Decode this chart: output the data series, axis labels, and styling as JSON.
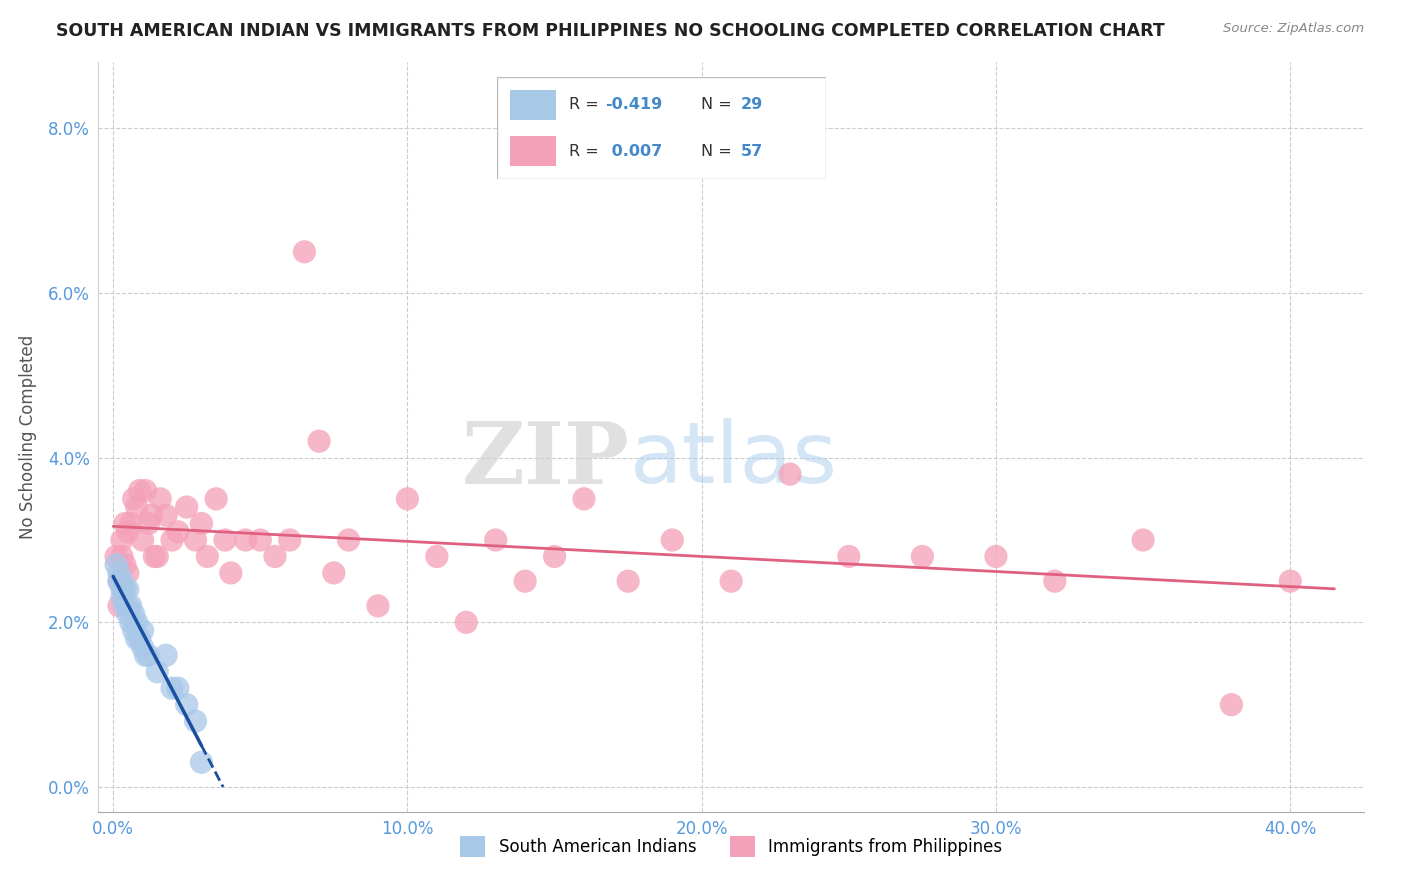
{
  "title": "SOUTH AMERICAN INDIAN VS IMMIGRANTS FROM PHILIPPINES NO SCHOOLING COMPLETED CORRELATION CHART",
  "source": "Source: ZipAtlas.com",
  "xlabel_ticks": [
    "0.0%",
    "10.0%",
    "20.0%",
    "30.0%",
    "40.0%"
  ],
  "xlabel_tick_vals": [
    0.0,
    0.1,
    0.2,
    0.3,
    0.4
  ],
  "ylabel": "No Schooling Completed",
  "ylabel_ticks": [
    "0.0%",
    "2.0%",
    "4.0%",
    "6.0%",
    "8.0%"
  ],
  "ylabel_tick_vals": [
    0.0,
    0.02,
    0.04,
    0.06,
    0.08
  ],
  "xlim": [
    -0.005,
    0.425
  ],
  "ylim": [
    -0.003,
    0.088
  ],
  "blue_R": -0.419,
  "blue_N": 29,
  "pink_R": 0.007,
  "pink_N": 57,
  "blue_color": "#a8c8e8",
  "pink_color": "#f4a0b8",
  "blue_line_color": "#1a4fa0",
  "pink_line_color": "#e06080",
  "legend_label_blue": "South American Indians",
  "legend_label_pink": "Immigrants from Philippines",
  "watermark_zip": "ZIP",
  "watermark_atlas": "atlas",
  "blue_scatter_x": [
    0.001,
    0.002,
    0.002,
    0.003,
    0.003,
    0.003,
    0.004,
    0.004,
    0.005,
    0.005,
    0.005,
    0.006,
    0.006,
    0.007,
    0.007,
    0.008,
    0.008,
    0.009,
    0.01,
    0.01,
    0.011,
    0.012,
    0.015,
    0.018,
    0.02,
    0.022,
    0.025,
    0.028,
    0.03
  ],
  "blue_scatter_y": [
    0.027,
    0.026,
    0.025,
    0.025,
    0.024,
    0.023,
    0.024,
    0.022,
    0.024,
    0.022,
    0.021,
    0.022,
    0.02,
    0.021,
    0.019,
    0.02,
    0.018,
    0.018,
    0.019,
    0.017,
    0.016,
    0.016,
    0.014,
    0.016,
    0.012,
    0.012,
    0.01,
    0.008,
    0.003
  ],
  "pink_scatter_x": [
    0.001,
    0.002,
    0.002,
    0.003,
    0.003,
    0.004,
    0.004,
    0.005,
    0.005,
    0.006,
    0.007,
    0.008,
    0.009,
    0.01,
    0.011,
    0.012,
    0.013,
    0.014,
    0.015,
    0.016,
    0.018,
    0.02,
    0.022,
    0.025,
    0.028,
    0.03,
    0.032,
    0.035,
    0.038,
    0.04,
    0.045,
    0.05,
    0.055,
    0.06,
    0.065,
    0.07,
    0.075,
    0.08,
    0.09,
    0.1,
    0.11,
    0.12,
    0.13,
    0.14,
    0.15,
    0.16,
    0.175,
    0.19,
    0.21,
    0.23,
    0.25,
    0.275,
    0.3,
    0.32,
    0.35,
    0.38,
    0.4
  ],
  "pink_scatter_y": [
    0.028,
    0.025,
    0.022,
    0.03,
    0.028,
    0.032,
    0.027,
    0.031,
    0.026,
    0.032,
    0.035,
    0.034,
    0.036,
    0.03,
    0.036,
    0.032,
    0.033,
    0.028,
    0.028,
    0.035,
    0.033,
    0.03,
    0.031,
    0.034,
    0.03,
    0.032,
    0.028,
    0.035,
    0.03,
    0.026,
    0.03,
    0.03,
    0.028,
    0.03,
    0.065,
    0.042,
    0.026,
    0.03,
    0.022,
    0.035,
    0.028,
    0.02,
    0.03,
    0.025,
    0.028,
    0.035,
    0.025,
    0.03,
    0.025,
    0.038,
    0.028,
    0.028,
    0.028,
    0.025,
    0.03,
    0.01,
    0.025
  ]
}
